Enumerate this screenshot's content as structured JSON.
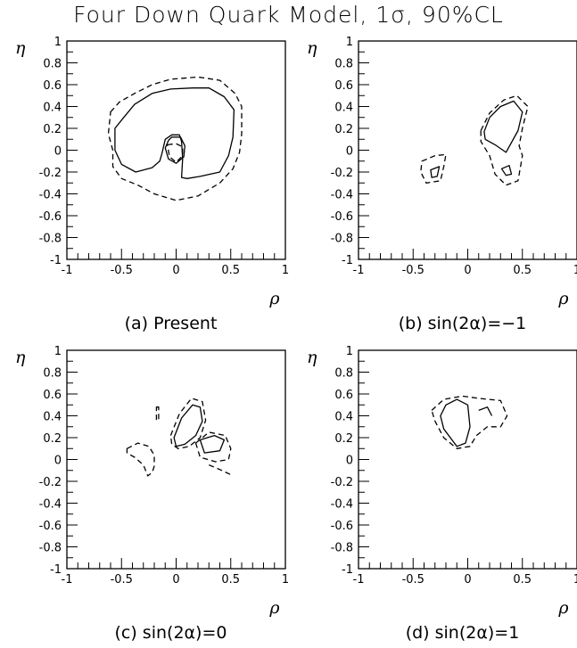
{
  "title": "Four Down Quark Model, 1σ, 90%CL",
  "chart_data": [
    {
      "type": "contour",
      "caption": "(a) Present",
      "xlabel": "ρ",
      "ylabel": "η",
      "xlim": [
        -1,
        1
      ],
      "ylim": [
        -1,
        1
      ],
      "xticks": [
        -1,
        -0.5,
        0,
        0.5,
        1
      ],
      "xtick_labels": [
        "-1",
        "-0.5",
        "0",
        "0.5",
        "1"
      ],
      "yticks": [
        -1,
        -0.8,
        -0.6,
        -0.4,
        -0.2,
        0,
        0.2,
        0.4,
        0.6,
        0.8,
        1
      ],
      "ytick_labels": [
        "-1",
        "-0.8",
        "-0.6",
        "-0.4",
        "-0.2",
        "0",
        "0.2",
        "0.4",
        "0.6",
        "0.8",
        "1"
      ],
      "contours": [
        {
          "level": "1σ",
          "style": "solid",
          "points": [
            [
              -0.56,
              0.2
            ],
            [
              -0.48,
              0.3
            ],
            [
              -0.38,
              0.42
            ],
            [
              -0.22,
              0.52
            ],
            [
              -0.05,
              0.56
            ],
            [
              0.15,
              0.57
            ],
            [
              0.3,
              0.57
            ],
            [
              0.44,
              0.49
            ],
            [
              0.53,
              0.37
            ],
            [
              0.52,
              0.12
            ],
            [
              0.48,
              -0.05
            ],
            [
              0.4,
              -0.2
            ],
            [
              0.22,
              -0.24
            ],
            [
              0.1,
              -0.26
            ],
            [
              0.05,
              -0.25
            ],
            [
              0.06,
              -0.08
            ],
            [
              0.05,
              0.08
            ],
            [
              0.03,
              0.14
            ],
            [
              -0.04,
              0.14
            ],
            [
              -0.1,
              0.1
            ],
            [
              -0.13,
              -0.03
            ],
            [
              -0.15,
              -0.1
            ],
            [
              -0.22,
              -0.16
            ],
            [
              -0.37,
              -0.2
            ],
            [
              -0.5,
              -0.13
            ],
            [
              -0.56,
              0
            ]
          ]
        },
        {
          "level": "1σ",
          "style": "solid",
          "points": [
            [
              -0.04,
              0.12
            ],
            [
              0.04,
              0.12
            ],
            [
              0.08,
              0.04
            ],
            [
              0.07,
              -0.06
            ],
            [
              0.0,
              -0.12
            ],
            [
              -0.07,
              -0.08
            ],
            [
              -0.1,
              0.02
            ],
            [
              -0.07,
              0.09
            ]
          ]
        },
        {
          "level": "90%CL",
          "style": "dashed",
          "points": [
            [
              -0.6,
              0.35
            ],
            [
              -0.52,
              0.44
            ],
            [
              -0.38,
              0.52
            ],
            [
              -0.22,
              0.6
            ],
            [
              -0.05,
              0.65
            ],
            [
              0.2,
              0.67
            ],
            [
              0.4,
              0.64
            ],
            [
              0.54,
              0.52
            ],
            [
              0.6,
              0.4
            ],
            [
              0.6,
              0.15
            ],
            [
              0.58,
              -0.02
            ],
            [
              0.52,
              -0.17
            ],
            [
              0.4,
              -0.3
            ],
            [
              0.2,
              -0.42
            ],
            [
              0.0,
              -0.46
            ],
            [
              -0.2,
              -0.4
            ],
            [
              -0.35,
              -0.32
            ],
            [
              -0.5,
              -0.26
            ],
            [
              -0.58,
              -0.15
            ],
            [
              -0.58,
              0
            ],
            [
              -0.62,
              0.15
            ]
          ]
        },
        {
          "level": "90%CL",
          "style": "dashed",
          "points": [
            [
              -0.08,
              0.05
            ],
            [
              0.0,
              0.06
            ],
            [
              0.06,
              0.03
            ],
            [
              0.06,
              -0.05
            ],
            [
              0.0,
              -0.11
            ],
            [
              -0.06,
              -0.06
            ]
          ]
        }
      ]
    },
    {
      "type": "contour",
      "caption": "(b) sin(2α)=−1",
      "xlabel": "ρ",
      "ylabel": "η",
      "xlim": [
        -1,
        1
      ],
      "ylim": [
        -1,
        1
      ],
      "xticks": [
        -1,
        -0.5,
        0,
        0.5,
        1
      ],
      "xtick_labels": [
        "-1",
        "-0.5",
        "0",
        "0.5",
        "1"
      ],
      "yticks": [
        -1,
        -0.8,
        -0.6,
        -0.4,
        -0.2,
        0,
        0.2,
        0.4,
        0.6,
        0.8,
        1
      ],
      "ytick_labels": [
        "-1",
        "-0.8",
        "-0.6",
        "-0.4",
        "-0.2",
        "0",
        "0.2",
        "0.4",
        "0.6",
        "0.8",
        "1"
      ],
      "contours": [
        {
          "level": "1σ",
          "style": "solid",
          "points": [
            [
              0.15,
              0.17
            ],
            [
              0.2,
              0.3
            ],
            [
              0.3,
              0.4
            ],
            [
              0.42,
              0.45
            ],
            [
              0.5,
              0.35
            ],
            [
              0.46,
              0.18
            ],
            [
              0.35,
              -0.02
            ],
            [
              0.25,
              0.05
            ],
            [
              0.16,
              0.1
            ]
          ]
        },
        {
          "level": "1σ",
          "style": "solid",
          "points": [
            [
              -0.34,
              -0.18
            ],
            [
              -0.26,
              -0.15
            ],
            [
              -0.28,
              -0.24
            ],
            [
              -0.33,
              -0.25
            ]
          ]
        },
        {
          "level": "1σ",
          "style": "solid",
          "points": [
            [
              0.31,
              -0.17
            ],
            [
              0.38,
              -0.14
            ],
            [
              0.4,
              -0.22
            ],
            [
              0.35,
              -0.23
            ]
          ]
        },
        {
          "level": "90%CL",
          "style": "dashed",
          "points": [
            [
              0.12,
              0.18
            ],
            [
              0.2,
              0.34
            ],
            [
              0.33,
              0.46
            ],
            [
              0.45,
              0.5
            ],
            [
              0.55,
              0.4
            ],
            [
              0.5,
              0.2
            ],
            [
              0.47,
              0.04
            ],
            [
              0.5,
              -0.05
            ],
            [
              0.46,
              -0.28
            ],
            [
              0.35,
              -0.32
            ],
            [
              0.25,
              -0.22
            ],
            [
              0.2,
              -0.05
            ],
            [
              0.12,
              0.08
            ]
          ]
        },
        {
          "level": "90%CL",
          "style": "dashed",
          "points": [
            [
              -0.42,
              -0.1
            ],
            [
              -0.3,
              -0.05
            ],
            [
              -0.2,
              -0.04
            ],
            [
              -0.22,
              -0.15
            ],
            [
              -0.25,
              -0.28
            ],
            [
              -0.38,
              -0.3
            ],
            [
              -0.43,
              -0.2
            ]
          ]
        }
      ]
    },
    {
      "type": "contour",
      "caption": "(c) sin(2α)=0",
      "xlabel": "ρ",
      "ylabel": "η",
      "xlim": [
        -1,
        1
      ],
      "ylim": [
        -1,
        1
      ],
      "xticks": [
        -1,
        -0.5,
        0,
        0.5,
        1
      ],
      "xtick_labels": [
        "-1",
        "-0.5",
        "0",
        "0.5",
        "1"
      ],
      "yticks": [
        -1,
        -0.8,
        -0.6,
        -0.4,
        -0.2,
        0,
        0.2,
        0.4,
        0.6,
        0.8,
        1
      ],
      "ytick_labels": [
        "-1",
        "-0.8",
        "-0.6",
        "-0.4",
        "-0.2",
        "0",
        "0.2",
        "0.4",
        "0.6",
        "0.8",
        "1"
      ],
      "contours": [
        {
          "level": "1σ",
          "style": "solid",
          "points": [
            [
              -0.02,
              0.2
            ],
            [
              0.05,
              0.38
            ],
            [
              0.15,
              0.5
            ],
            [
              0.22,
              0.48
            ],
            [
              0.24,
              0.35
            ],
            [
              0.18,
              0.22
            ],
            [
              0.08,
              0.14
            ],
            [
              0.0,
              0.12
            ]
          ]
        },
        {
          "level": "1σ",
          "style": "solid",
          "points": [
            [
              0.22,
              0.18
            ],
            [
              0.35,
              0.22
            ],
            [
              0.44,
              0.18
            ],
            [
              0.4,
              0.08
            ],
            [
              0.26,
              0.06
            ]
          ]
        },
        {
          "level": "90%CL",
          "style": "dashed",
          "points": [
            [
              -0.05,
              0.22
            ],
            [
              0.03,
              0.42
            ],
            [
              0.14,
              0.56
            ],
            [
              0.24,
              0.53
            ],
            [
              0.27,
              0.36
            ],
            [
              0.22,
              0.2
            ],
            [
              0.12,
              0.12
            ],
            [
              0.02,
              0.1
            ],
            [
              -0.04,
              0.14
            ]
          ]
        },
        {
          "level": "90%CL",
          "style": "dashed",
          "points": [
            [
              0.18,
              0.15
            ],
            [
              0.3,
              0.25
            ],
            [
              0.45,
              0.22
            ],
            [
              0.5,
              0.1
            ],
            [
              0.48,
              0.0
            ],
            [
              0.36,
              -0.02
            ],
            [
              0.22,
              0.02
            ]
          ]
        },
        {
          "level": "90%CL",
          "style": "dashed",
          "points": [
            [
              0.3,
              -0.05
            ],
            [
              0.42,
              -0.1
            ],
            [
              0.5,
              -0.14
            ]
          ]
        },
        {
          "level": "90%CL",
          "style": "dashed",
          "points": [
            [
              -0.18,
              0.48
            ],
            [
              -0.16,
              0.48
            ],
            [
              -0.16,
              0.36
            ],
            [
              -0.18,
              0.36
            ]
          ]
        },
        {
          "level": "90%CL",
          "style": "dashed",
          "points": [
            [
              -0.45,
              0.1
            ],
            [
              -0.35,
              0.15
            ],
            [
              -0.25,
              0.12
            ],
            [
              -0.2,
              0.04
            ],
            [
              -0.2,
              -0.06
            ],
            [
              -0.22,
              -0.12
            ],
            [
              -0.26,
              -0.15
            ],
            [
              -0.3,
              -0.05
            ],
            [
              -0.38,
              0.02
            ],
            [
              -0.45,
              0.06
            ]
          ]
        }
      ]
    },
    {
      "type": "contour",
      "caption": "(d) sin(2α)=1",
      "xlabel": "ρ",
      "ylabel": "η",
      "xlim": [
        -1,
        1
      ],
      "ylim": [
        -1,
        1
      ],
      "xticks": [
        -1,
        -0.5,
        0,
        0.5,
        1
      ],
      "xtick_labels": [
        "-1",
        "-0.5",
        "0",
        "0.5",
        "1"
      ],
      "yticks": [
        -1,
        -0.8,
        -0.6,
        -0.4,
        -0.2,
        0,
        0.2,
        0.4,
        0.6,
        0.8,
        1
      ],
      "ytick_labels": [
        "-1",
        "-0.8",
        "-0.6",
        "-0.4",
        "-0.2",
        "0",
        "0.2",
        "0.4",
        "0.6",
        "0.8",
        "1"
      ],
      "contours": [
        {
          "level": "1σ",
          "style": "solid",
          "points": [
            [
              -0.25,
              0.4
            ],
            [
              -0.2,
              0.5
            ],
            [
              -0.1,
              0.55
            ],
            [
              0.0,
              0.5
            ],
            [
              0.02,
              0.3
            ],
            [
              -0.02,
              0.15
            ],
            [
              -0.1,
              0.12
            ],
            [
              -0.22,
              0.28
            ]
          ]
        },
        {
          "level": "1σ",
          "style": "solid",
          "points": [
            [
              0.1,
              0.45
            ],
            [
              0.18,
              0.48
            ],
            [
              0.22,
              0.4
            ]
          ]
        },
        {
          "level": "90%CL",
          "style": "dashed",
          "points": [
            [
              -0.33,
              0.45
            ],
            [
              -0.22,
              0.55
            ],
            [
              -0.05,
              0.58
            ],
            [
              0.1,
              0.56
            ],
            [
              0.3,
              0.54
            ],
            [
              0.36,
              0.4
            ],
            [
              0.3,
              0.3
            ],
            [
              0.18,
              0.3
            ],
            [
              0.08,
              0.22
            ],
            [
              0.02,
              0.12
            ],
            [
              -0.1,
              0.1
            ],
            [
              -0.22,
              0.2
            ],
            [
              -0.3,
              0.35
            ]
          ]
        }
      ]
    }
  ]
}
